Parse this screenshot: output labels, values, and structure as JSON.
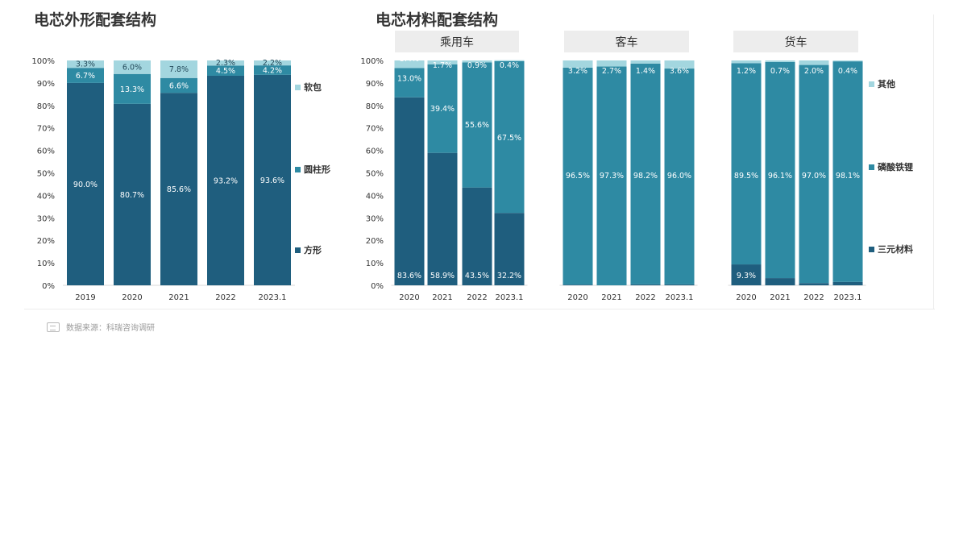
{
  "left_chart": {
    "title": "电芯外形配套结构"
  },
  "right_chart": {
    "title": "电芯材料配套结构",
    "groups": [
      "乘用车",
      "客车",
      "货车"
    ]
  },
  "source": {
    "text": "数据来源：科瑞咨询调研"
  },
  "colors": {
    "dark": "#1f5e7e",
    "mid": "#2e8aa3",
    "light": "#a3d6df"
  },
  "chart_data": [
    {
      "type": "bar",
      "stacked": true,
      "percent": true,
      "title": "电芯外形配套结构",
      "categories": [
        "2019",
        "2020",
        "2021",
        "2022",
        "2023.1"
      ],
      "ylim": [
        0,
        100
      ],
      "yticks": [
        "0%",
        "10%",
        "20%",
        "30%",
        "40%",
        "50%",
        "60%",
        "70%",
        "80%",
        "90%",
        "100%"
      ],
      "legend_position": "right",
      "series": [
        {
          "name": "方形",
          "color": "#1f5e7e",
          "values": [
            90.0,
            80.7,
            85.6,
            93.2,
            93.6
          ],
          "labels": [
            "90.0%",
            "80.7%",
            "85.6%",
            "93.2%",
            "93.6%"
          ]
        },
        {
          "name": "圆柱形",
          "color": "#2e8aa3",
          "values": [
            6.7,
            13.3,
            6.6,
            4.5,
            4.2
          ],
          "labels": [
            "6.7%",
            "13.3%",
            "6.6%",
            "4.5%",
            "4.2%"
          ]
        },
        {
          "name": "软包",
          "color": "#a3d6df",
          "values": [
            3.3,
            6.0,
            7.8,
            2.3,
            2.2
          ],
          "labels": [
            "3.3%",
            "6.0%",
            "7.8%",
            "2.3%",
            "2.2%"
          ]
        }
      ]
    },
    {
      "type": "bar",
      "stacked": true,
      "percent": true,
      "title": "电芯材料配套结构",
      "ylim": [
        0,
        100
      ],
      "yticks": [
        "0%",
        "10%",
        "20%",
        "30%",
        "40%",
        "50%",
        "60%",
        "70%",
        "80%",
        "90%",
        "100%"
      ],
      "legend_position": "right",
      "legend": [
        {
          "name": "其他",
          "color": "#a3d6df"
        },
        {
          "name": "磷酸铁锂",
          "color": "#2e8aa3"
        },
        {
          "name": "三元材料",
          "color": "#1f5e7e"
        }
      ],
      "groups": [
        {
          "name": "乘用车",
          "categories": [
            "2020",
            "2021",
            "2022",
            "2023.1"
          ],
          "series": [
            {
              "name": "三元材料",
              "values": [
                83.6,
                58.9,
                43.5,
                32.2
              ],
              "labels": [
                "83.6%",
                "58.9%",
                "43.5%",
                "32.2%"
              ]
            },
            {
              "name": "磷酸铁锂",
              "values": [
                13.0,
                39.4,
                55.6,
                67.5
              ],
              "labels": [
                "13.0%",
                "39.4%",
                "55.6%",
                "67.5%"
              ]
            },
            {
              "name": "其他",
              "values": [
                3.4,
                1.7,
                0.9,
                0.4
              ],
              "labels": [
                "3.4%",
                "1.7%",
                "0.9%",
                "0.4%"
              ]
            }
          ]
        },
        {
          "name": "客车",
          "categories": [
            "2020",
            "2021",
            "2022",
            "2023.1"
          ],
          "series": [
            {
              "name": "三元材料",
              "values": [
                0.3,
                0.0,
                0.4,
                0.4
              ],
              "labels": [
                "0.3%",
                "",
                "0.4%",
                "0.4%"
              ]
            },
            {
              "name": "磷酸铁锂",
              "values": [
                96.5,
                97.3,
                98.2,
                96.0
              ],
              "labels": [
                "96.5%",
                "97.3%",
                "98.2%",
                "96.0%"
              ]
            },
            {
              "name": "其他",
              "values": [
                3.2,
                2.7,
                1.4,
                3.6
              ],
              "labels": [
                "3.2%",
                "2.7%",
                "1.4%",
                "3.6%"
              ]
            }
          ]
        },
        {
          "name": "货车",
          "categories": [
            "2020",
            "2021",
            "2022",
            "2023.1"
          ],
          "series": [
            {
              "name": "三元材料",
              "values": [
                9.3,
                3.2,
                1.0,
                1.5
              ],
              "labels": [
                "9.3%",
                "3.2%",
                "1.0%",
                "1.5%"
              ]
            },
            {
              "name": "磷酸铁锂",
              "values": [
                89.5,
                96.1,
                97.0,
                98.1
              ],
              "labels": [
                "89.5%",
                "96.1%",
                "97.0%",
                "98.1%"
              ]
            },
            {
              "name": "其他",
              "values": [
                1.2,
                0.7,
                2.0,
                0.4
              ],
              "labels": [
                "1.2%",
                "0.7%",
                "2.0%",
                "0.4%"
              ]
            }
          ]
        }
      ]
    }
  ]
}
